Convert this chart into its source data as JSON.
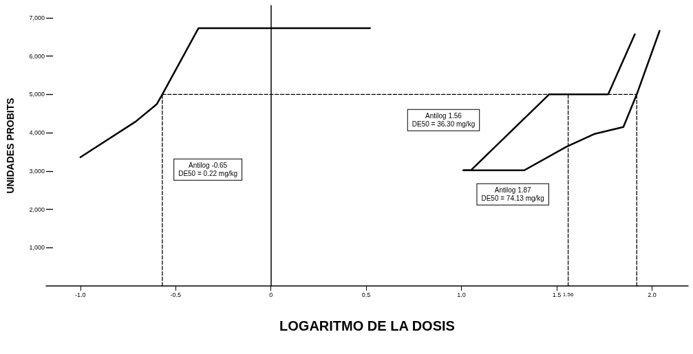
{
  "chart_data": {
    "type": "line",
    "xlabel": "LOGARITMO DE LA DOSIS",
    "ylabel": "UNIDADES PROBITS",
    "xlim": [
      -1.18,
      2.19
    ],
    "ylim": [
      0,
      7320
    ],
    "xticks": [
      {
        "value": -1,
        "label": "-1.0"
      },
      {
        "value": -0.5,
        "label": "-0.5"
      },
      0,
      {
        "value": 0.5,
        "label": "0.5"
      },
      {
        "value": 1,
        "label": "1.0"
      },
      {
        "value": 1.5,
        "label": "1.5"
      },
      {
        "value": 2,
        "label": "2.0"
      }
    ],
    "yticks": [
      {
        "value": 1000,
        "label": "1,000"
      },
      {
        "value": 2000,
        "label": "2,000"
      },
      {
        "value": 3000,
        "label": "3,000"
      },
      {
        "value": 4000,
        "label": "4,000"
      },
      {
        "value": 5000,
        "label": "5,000"
      },
      {
        "value": 6000,
        "label": "6,000"
      },
      {
        "value": 7000,
        "label": "7,000"
      }
    ],
    "grid": false,
    "marker": "none",
    "line_style": "solid",
    "series": [
      {
        "color": "#000000",
        "x": [
          -1.0,
          -0.71,
          -0.6,
          -0.57,
          -0.38,
          0.52
        ],
        "values": [
          3360,
          4290,
          4740,
          5000,
          6730,
          6730
        ]
      },
      {
        "color": "#000000",
        "x": [
          1.01,
          1.05,
          1.46,
          1.77,
          1.91
        ],
        "values": [
          3020,
          3020,
          5000,
          5000,
          6570
        ]
      },
      {
        "color": "#000000",
        "x": [
          1.01,
          1.33,
          1.55,
          1.7,
          1.85,
          1.92,
          2.04
        ],
        "values": [
          3020,
          3020,
          3630,
          3970,
          4150,
          5000,
          6660
        ]
      },
      {
        "color": "#000000",
        "line_style": "dashed",
        "x": [
          -0.57,
          1.92
        ],
        "values": [
          5000,
          5000
        ]
      },
      {
        "color": "#000000",
        "line_style": "dashed",
        "x": [
          -0.57,
          -0.57
        ],
        "values": [
          0,
          5000
        ]
      },
      {
        "color": "#000000",
        "line_style": "dashed",
        "x": [
          1.56,
          1.56
        ],
        "values": [
          0,
          5000
        ]
      },
      {
        "color": "#000000",
        "line_style": "dashed",
        "x": [
          1.92,
          1.92
        ],
        "values": [
          0,
          5000
        ]
      }
    ],
    "annotations": [
      "Antilog -0.65\nDE50 = 0.22 mg/kg",
      "Antilog 1.56\nDE50 = 36.30 mg/kg",
      "Antilog 1.87\nDE50 = 74.13 mg/kg",
      {
        "text": "1.56",
        "x": 1.56,
        "y": 0
      }
    ]
  }
}
